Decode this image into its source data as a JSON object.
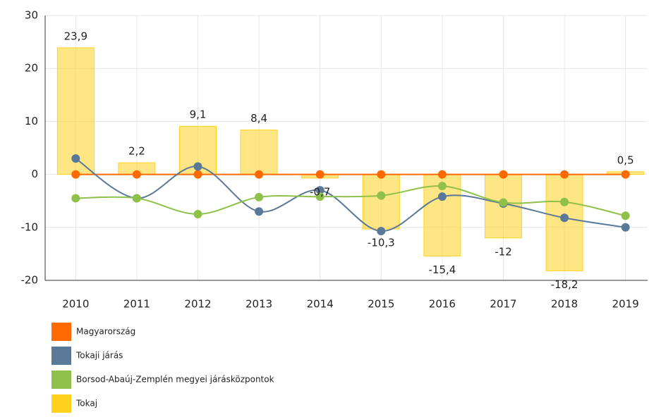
{
  "chart_data": {
    "type": "bar",
    "categories": [
      "2010",
      "2011",
      "2012",
      "2013",
      "2014",
      "2015",
      "2016",
      "2017",
      "2018",
      "2019"
    ],
    "ylim": [
      -20,
      30
    ],
    "yticks": [
      -20,
      -10,
      0,
      10,
      20,
      30
    ],
    "grid": true,
    "series": [
      {
        "name": "Magyarország",
        "type": "line",
        "color": "#ff6a00",
        "values": [
          0,
          0,
          0,
          0,
          0,
          0,
          0,
          0,
          0,
          0
        ]
      },
      {
        "name": "Tokaji járás",
        "type": "line",
        "color": "#5a7898",
        "values": [
          3,
          -4.5,
          1.5,
          -7,
          -3,
          -10.7,
          -4.2,
          -5.5,
          -8.2,
          -10
        ]
      },
      {
        "name": "Borsod-Abaúj-Zemplén megyei járásközpontok",
        "type": "line",
        "color": "#8fc04a",
        "values": [
          -4.5,
          -4.5,
          -7.5,
          -4.3,
          -4.2,
          -4,
          -2.2,
          -5.3,
          -5.2,
          -7.8
        ]
      },
      {
        "name": "Tokaj",
        "type": "bar",
        "color": "#ffd21f",
        "values": [
          23.9,
          2.2,
          9.1,
          8.4,
          -0.7,
          -10.3,
          -15.4,
          -12,
          -18.2,
          0.5
        ],
        "value_labels": [
          "23,9",
          "2,2",
          "9,1",
          "8,4",
          "-0,7",
          "-10,3",
          "-15,4",
          "-12",
          "-18,2",
          "0,5"
        ]
      }
    ]
  }
}
